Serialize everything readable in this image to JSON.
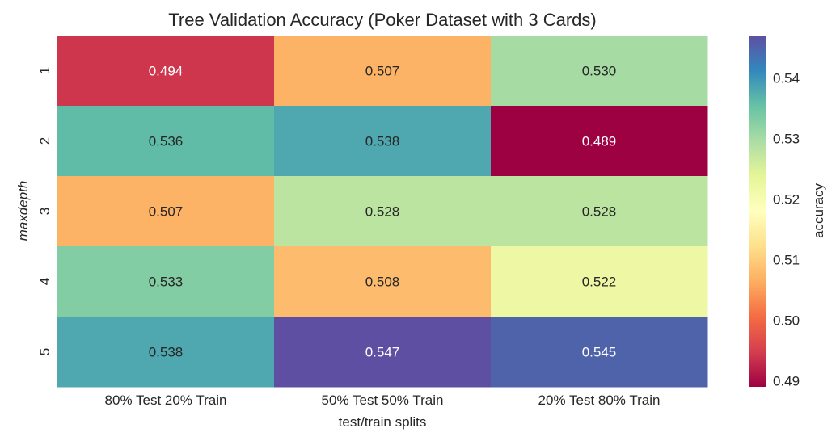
{
  "chart_data": {
    "type": "heatmap",
    "title": "Tree Validation Accuracy (Poker Dataset with 3 Cards)",
    "xlabel": "test/train splits",
    "ylabel": "maxdepth",
    "x_categories": [
      "80% Test 20% Train",
      "50% Test 50% Train",
      "20% Test 80% Train"
    ],
    "y_categories": [
      "1",
      "2",
      "3",
      "4",
      "5"
    ],
    "values": [
      [
        0.494,
        0.507,
        0.53
      ],
      [
        0.536,
        0.538,
        0.489
      ],
      [
        0.507,
        0.528,
        0.528
      ],
      [
        0.533,
        0.508,
        0.522
      ],
      [
        0.538,
        0.547,
        0.545
      ]
    ],
    "value_labels": [
      [
        "0.494",
        "0.507",
        "0.530"
      ],
      [
        "0.536",
        "0.538",
        "0.489"
      ],
      [
        "0.507",
        "0.528",
        "0.528"
      ],
      [
        "0.533",
        "0.508",
        "0.522"
      ],
      [
        "0.538",
        "0.547",
        "0.545"
      ]
    ],
    "colorbar": {
      "label": "accuracy",
      "range": [
        0.489,
        0.547
      ],
      "ticks": [
        0.49,
        0.5,
        0.51,
        0.52,
        0.53,
        0.54
      ],
      "tick_labels": [
        "0.49",
        "0.50",
        "0.51",
        "0.52",
        "0.53",
        "0.54"
      ],
      "colormap": "Spectral",
      "colormap_stops": [
        "#9e0142",
        "#d53e4f",
        "#f46d43",
        "#fdae61",
        "#fee08b",
        "#ffffbf",
        "#e6f598",
        "#abdda4",
        "#66c2a5",
        "#3288bd",
        "#5e4fa2"
      ]
    },
    "grid": false
  }
}
